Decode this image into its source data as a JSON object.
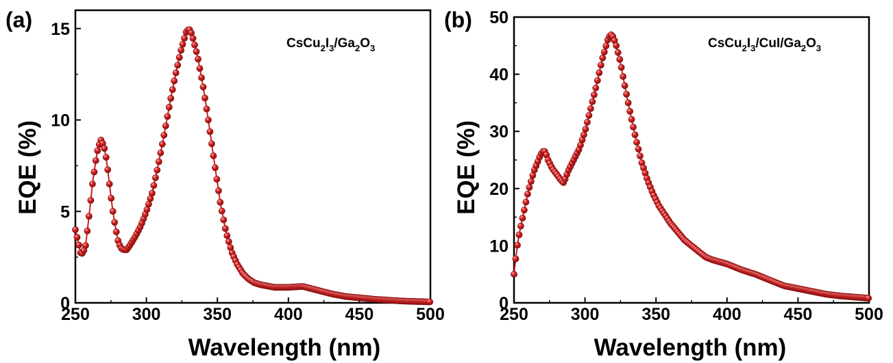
{
  "chart_data": [
    {
      "type": "scatter",
      "panel_label": "(a)",
      "legend": {
        "text": "CsCu",
        "sub1": "2",
        "mid": "I",
        "sub2": "3",
        "tail": "/Ga",
        "sub3": "2",
        "tail2": "O",
        "sub4": "3"
      },
      "xlabel": "Wavelength (nm)",
      "ylabel": "EQE (%)",
      "xlim": [
        250,
        500
      ],
      "ylim": [
        0,
        16
      ],
      "xticks": [
        "250",
        "300",
        "350",
        "400",
        "450",
        "500"
      ],
      "yticks": [
        "0",
        "5",
        "10",
        "15"
      ],
      "color": "#cc1f1f",
      "series": [
        {
          "keypoints": [
            [
              250,
              4.0
            ],
            [
              252,
              3.3
            ],
            [
              254,
              2.6
            ],
            [
              257,
              3.0
            ],
            [
              260,
              5.0
            ],
            [
              262,
              6.5
            ],
            [
              264,
              7.6
            ],
            [
              266,
              8.5
            ],
            [
              268,
              8.9
            ],
            [
              270,
              8.6
            ],
            [
              272,
              7.8
            ],
            [
              274,
              6.5
            ],
            [
              276,
              5.2
            ],
            [
              278,
              4.2
            ],
            [
              280,
              3.4
            ],
            [
              282,
              3.0
            ],
            [
              284,
              2.9
            ],
            [
              286,
              2.9
            ],
            [
              288,
              3.1
            ],
            [
              292,
              3.6
            ],
            [
              296,
              4.2
            ],
            [
              300,
              5.0
            ],
            [
              304,
              6.0
            ],
            [
              308,
              7.4
            ],
            [
              312,
              9.0
            ],
            [
              316,
              10.7
            ],
            [
              320,
              12.3
            ],
            [
              324,
              13.7
            ],
            [
              328,
              14.8
            ],
            [
              330,
              15.0
            ],
            [
              332,
              14.7
            ],
            [
              336,
              13.5
            ],
            [
              340,
              11.8
            ],
            [
              344,
              9.8
            ],
            [
              348,
              7.6
            ],
            [
              352,
              5.5
            ],
            [
              356,
              3.9
            ],
            [
              360,
              2.8
            ],
            [
              364,
              2.1
            ],
            [
              368,
              1.6
            ],
            [
              372,
              1.3
            ],
            [
              376,
              1.1
            ],
            [
              380,
              1.0
            ],
            [
              390,
              0.85
            ],
            [
              400,
              0.85
            ],
            [
              410,
              0.9
            ],
            [
              420,
              0.7
            ],
            [
              430,
              0.5
            ],
            [
              440,
              0.35
            ],
            [
              460,
              0.2
            ],
            [
              480,
              0.1
            ],
            [
              500,
              0.05
            ]
          ],
          "x_start": 250,
          "x_end": 500,
          "step": 1.2
        }
      ]
    },
    {
      "type": "scatter",
      "panel_label": "(b)",
      "legend": {
        "text": "CsCu",
        "sub1": "2",
        "mid": "I",
        "sub2": "3",
        "tail": "/CuI/Ga",
        "sub3": "2",
        "tail2": "O",
        "sub4": "3"
      },
      "xlabel": "Wavelength (nm)",
      "ylabel": "EQE (%)",
      "xlim": [
        250,
        500
      ],
      "ylim": [
        0,
        50
      ],
      "xticks": [
        "250",
        "300",
        "350",
        "400",
        "450",
        "500"
      ],
      "yticks": [
        "0",
        "10",
        "20",
        "30",
        "40",
        "50"
      ],
      "color": "#cc1f1f",
      "series": [
        {
          "keypoints": [
            [
              250,
              5.0
            ],
            [
              252,
              9.5
            ],
            [
              254,
              12.5
            ],
            [
              257,
              16.0
            ],
            [
              260,
              19.5
            ],
            [
              264,
              23.0
            ],
            [
              268,
              25.5
            ],
            [
              270,
              26.5
            ],
            [
              272,
              26.5
            ],
            [
              274,
              25.0
            ],
            [
              277,
              23.5
            ],
            [
              280,
              22.5
            ],
            [
              283,
              21.5
            ],
            [
              285,
              21.0
            ],
            [
              288,
              23.0
            ],
            [
              292,
              25.0
            ],
            [
              296,
              27.0
            ],
            [
              300,
              30.0
            ],
            [
              304,
              34.0
            ],
            [
              308,
              38.0
            ],
            [
              312,
              42.5
            ],
            [
              316,
              46.0
            ],
            [
              318,
              47.0
            ],
            [
              320,
              46.5
            ],
            [
              322,
              45.0
            ],
            [
              325,
              42.0
            ],
            [
              328,
              38.0
            ],
            [
              332,
              33.0
            ],
            [
              336,
              28.5
            ],
            [
              340,
              24.5
            ],
            [
              344,
              21.5
            ],
            [
              348,
              19.0
            ],
            [
              352,
              17.0
            ],
            [
              356,
              15.5
            ],
            [
              360,
              14.0
            ],
            [
              365,
              12.5
            ],
            [
              370,
              11.0
            ],
            [
              375,
              10.0
            ],
            [
              380,
              9.0
            ],
            [
              385,
              8.0
            ],
            [
              390,
              7.5
            ],
            [
              400,
              6.8
            ],
            [
              410,
              5.8
            ],
            [
              420,
              5.0
            ],
            [
              430,
              4.0
            ],
            [
              440,
              3.0
            ],
            [
              450,
              2.5
            ],
            [
              460,
              2.0
            ],
            [
              470,
              1.5
            ],
            [
              480,
              1.2
            ],
            [
              490,
              1.0
            ],
            [
              500,
              0.8
            ]
          ],
          "x_start": 250,
          "x_end": 500,
          "step": 1.2
        }
      ]
    }
  ]
}
